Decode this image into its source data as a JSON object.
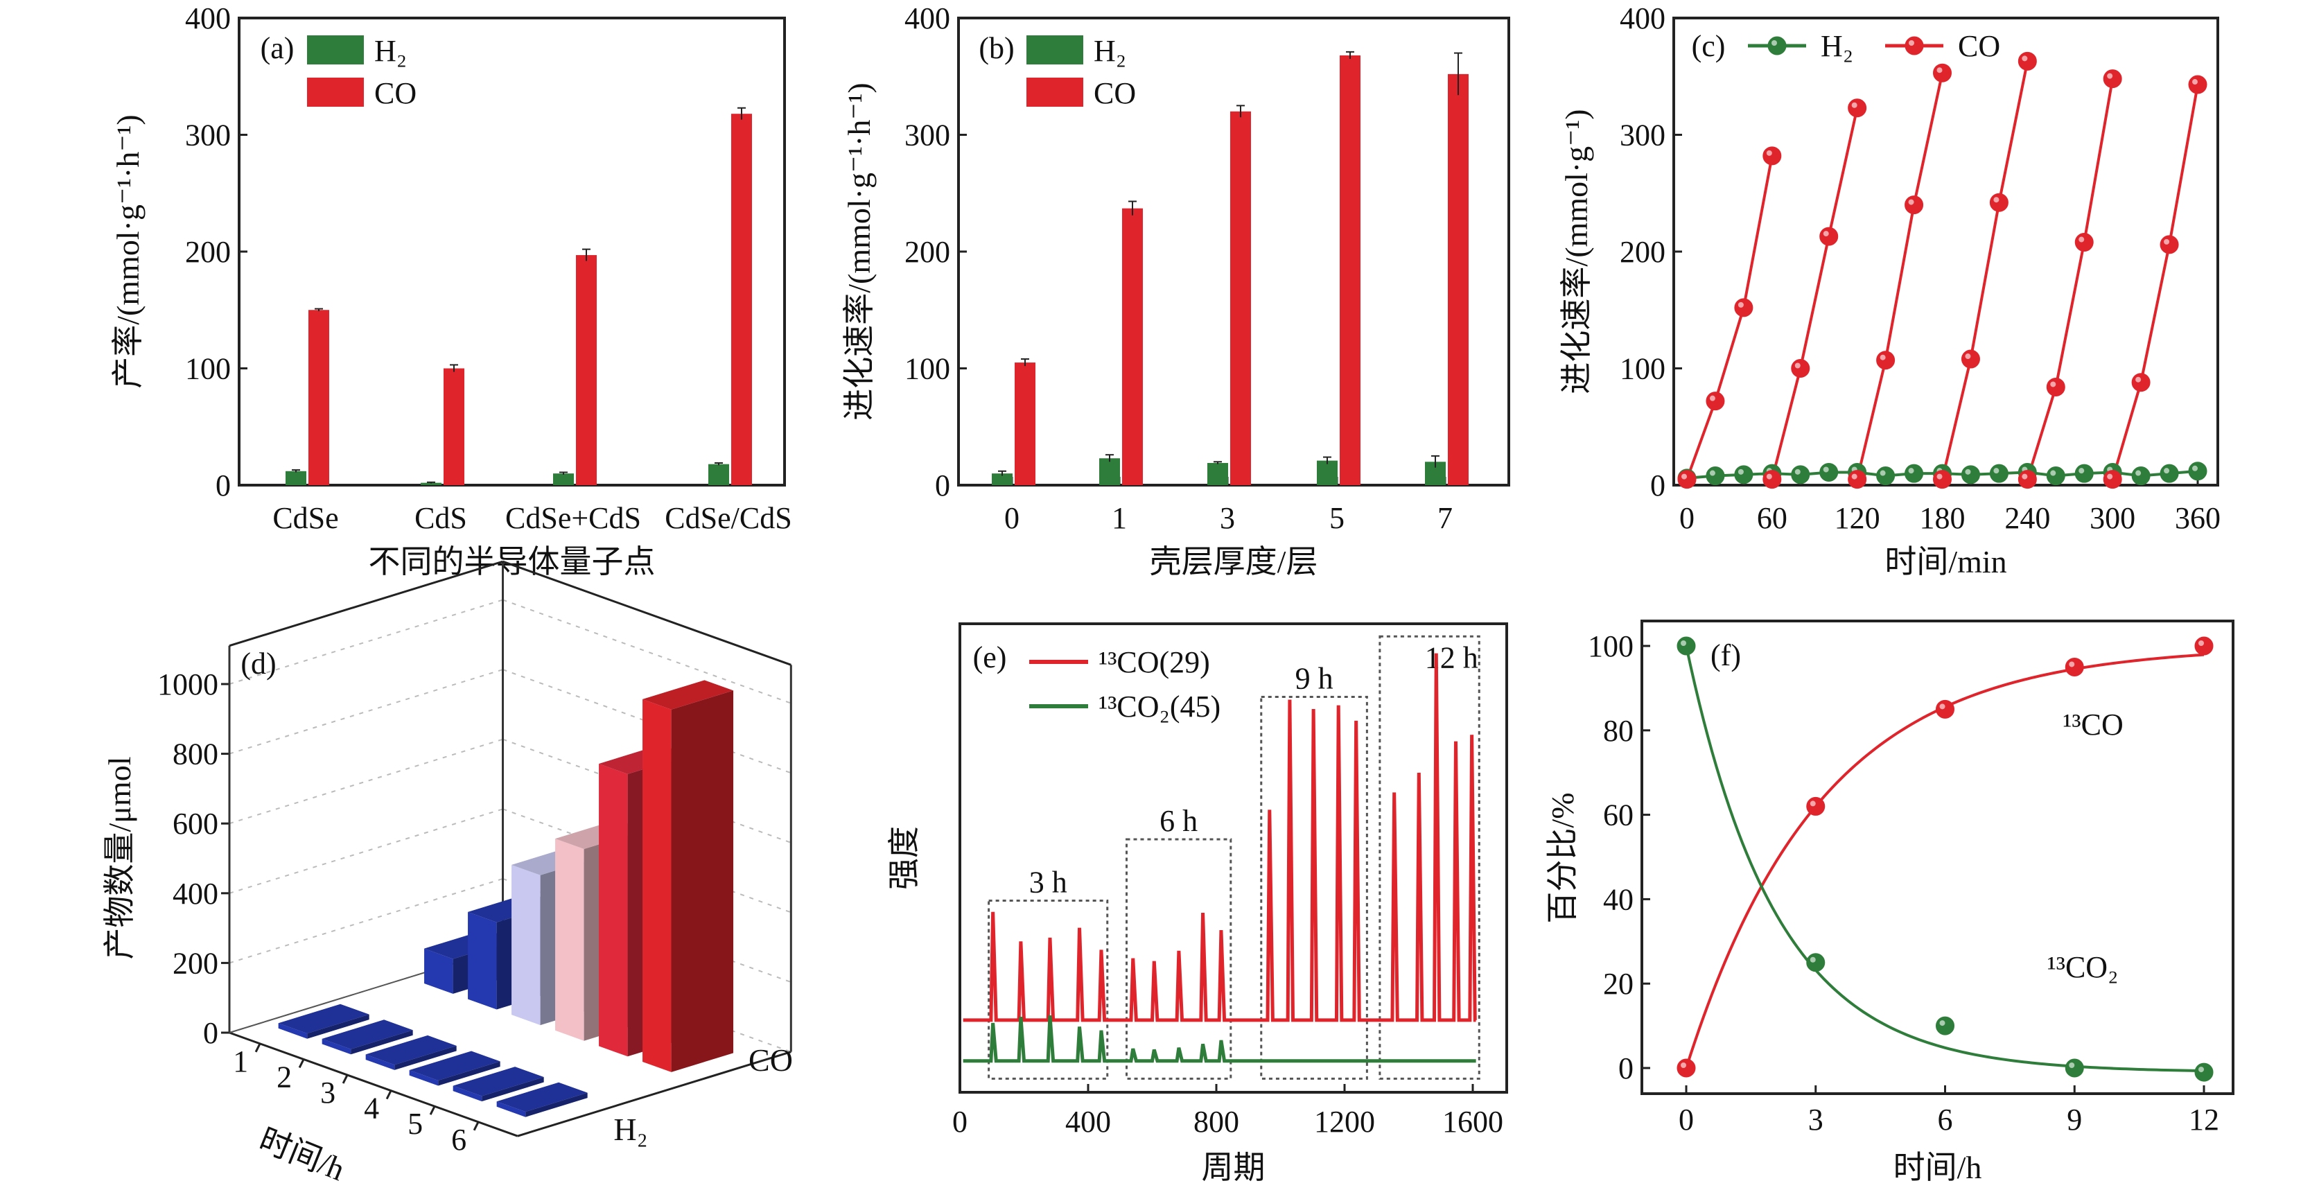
{
  "colors": {
    "h2": "#2f7d3a",
    "co": "#e0242c",
    "blue": "#2438b0",
    "grid": "#bbbbbb"
  },
  "chart_data": [
    {
      "panel": "(a)",
      "type": "bar",
      "categories": [
        "CdSe",
        "CdS",
        "CdSe+CdS",
        "CdSe/CdS"
      ],
      "xlabel": "不同的半导体量子点",
      "ylabel": "产率/(mmol·g⁻¹·h⁻¹)",
      "ylim": [
        0,
        400
      ],
      "yticks": [
        0,
        100,
        200,
        300,
        400
      ],
      "series": [
        {
          "name": "H₂",
          "values": [
            12,
            2,
            10,
            18
          ],
          "errors": [
            1,
            0.5,
            1,
            1
          ]
        },
        {
          "name": "CO",
          "values": [
            150,
            100,
            197,
            318
          ],
          "errors": [
            1,
            3,
            5,
            5
          ]
        }
      ],
      "legend": "top-left"
    },
    {
      "panel": "(b)",
      "type": "bar",
      "categories": [
        "0",
        "1",
        "3",
        "5",
        "7"
      ],
      "xlabel": "壳层厚度/层",
      "ylabel": "进化速率/(mmol·g⁻¹·h⁻¹)",
      "ylim": [
        0,
        400
      ],
      "yticks": [
        0,
        100,
        200,
        300,
        400
      ],
      "series": [
        {
          "name": "H₂",
          "values": [
            10,
            23,
            19,
            21,
            20
          ],
          "errors": [
            2,
            3,
            1,
            3,
            5
          ]
        },
        {
          "name": "CO",
          "values": [
            105,
            237,
            320,
            368,
            352
          ],
          "errors": [
            3,
            6,
            5,
            3,
            18
          ]
        }
      ],
      "legend": "top-left"
    },
    {
      "panel": "(c)",
      "type": "line",
      "xlabel": "时间/min",
      "ylabel": "进化速率/(mmol·g⁻¹)",
      "xlim": [
        0,
        360
      ],
      "xticks": [
        0,
        60,
        120,
        180,
        240,
        300,
        360
      ],
      "ylim": [
        0,
        400
      ],
      "yticks": [
        0,
        100,
        200,
        300,
        400
      ],
      "series": [
        {
          "name": "H₂",
          "x": [
            0,
            20,
            40,
            60,
            80,
            100,
            120,
            140,
            160,
            180,
            200,
            220,
            240,
            260,
            280,
            300,
            320,
            340,
            360
          ],
          "y": [
            6,
            8,
            9,
            10,
            9,
            11,
            11,
            8,
            10,
            10,
            9,
            10,
            11,
            8,
            10,
            11,
            8,
            10,
            12
          ]
        },
        {
          "name": "CO",
          "segments": [
            {
              "x": [
                0,
                20,
                40,
                60
              ],
              "y": [
                5,
                72,
                152,
                282
              ]
            },
            {
              "x": [
                60,
                80,
                100,
                120
              ],
              "y": [
                5,
                100,
                213,
                323
              ]
            },
            {
              "x": [
                120,
                140,
                160,
                180
              ],
              "y": [
                5,
                107,
                240,
                353
              ]
            },
            {
              "x": [
                180,
                200,
                220,
                240
              ],
              "y": [
                5,
                108,
                242,
                363
              ]
            },
            {
              "x": [
                240,
                260,
                280,
                300
              ],
              "y": [
                5,
                84,
                208,
                348
              ]
            },
            {
              "x": [
                300,
                320,
                340,
                360
              ],
              "y": [
                5,
                88,
                206,
                343
              ]
            }
          ]
        }
      ],
      "legend": "top"
    },
    {
      "panel": "(d)",
      "type": "bar3d",
      "xlabel": "时间/h",
      "ylabel": "产物数量/μmol",
      "categories": [
        "1",
        "2",
        "3",
        "4",
        "5",
        "6"
      ],
      "zcategories": [
        "H₂",
        "CO"
      ],
      "zlim": [
        0,
        1100
      ],
      "zticks": [
        0,
        200,
        400,
        600,
        800,
        1000
      ],
      "series": [
        {
          "name": "H₂",
          "values": [
            5,
            5,
            5,
            5,
            5,
            5
          ]
        },
        {
          "name": "CO",
          "values": [
            100,
            250,
            430,
            550,
            810,
            1040
          ]
        }
      ],
      "co_bar_colors": [
        "#2438b0",
        "#2438b0",
        "#c8c8f0",
        "#f4c0c8",
        "#e02a3c",
        "#e0242c"
      ]
    },
    {
      "panel": "(e)",
      "type": "line",
      "xlabel": "周期",
      "ylabel": "强度",
      "xlim": [
        0,
        1650
      ],
      "xticks": [
        0,
        400,
        800,
        1200,
        1600
      ],
      "ylim": [
        0,
        100
      ],
      "baselines": {
        "13CO": 15.4,
        "13CO2": 6.7
      },
      "series": [
        {
          "name": "¹³CO(29)",
          "peaks_x": [
            103,
            190,
            281,
            373,
            441,
            540,
            606,
            683,
            758,
            815,
            966,
            1029,
            1103,
            1181,
            1236,
            1355,
            1432,
            1486,
            1547,
            1597
          ],
          "peaks_y": [
            38.5,
            32.2,
            33,
            35.1,
            30.4,
            28.6,
            28,
            30.2,
            38.3,
            34.6,
            60.3,
            83.8,
            81.8,
            82.6,
            79.3,
            64,
            68.2,
            93.7,
            74.9,
            76.3
          ]
        },
        {
          "name": "¹³CO₂(45)",
          "peaks_x": [
            103,
            190,
            281,
            373,
            441,
            540,
            606,
            683,
            758,
            815
          ],
          "peaks_y": [
            14.8,
            16.1,
            16.4,
            14,
            13.2,
            9.3,
            9.1,
            9.5,
            10.3,
            11.1
          ]
        }
      ],
      "groups": [
        {
          "label": "3 h",
          "x": [
            90,
            460
          ],
          "top": 40.9
        },
        {
          "label": "6 h",
          "x": [
            520,
            845
          ],
          "top": 54
        },
        {
          "label": "9 h",
          "x": [
            940,
            1270
          ],
          "top": 84.4
        },
        {
          "label": "12 h",
          "x": [
            1310,
            1620
          ],
          "top": 97.3
        }
      ],
      "legend": "top-left"
    },
    {
      "panel": "(f)",
      "type": "line",
      "xlabel": "时间/h",
      "ylabel": "百分比/%",
      "xlim": [
        0,
        12
      ],
      "xticks": [
        0,
        3,
        6,
        9,
        12
      ],
      "ylim": [
        -3,
        103
      ],
      "yticks": [
        0,
        20,
        40,
        60,
        80,
        100
      ],
      "series": [
        {
          "name": "¹³CO",
          "x": [
            0,
            3,
            6,
            9,
            12
          ],
          "y": [
            0,
            62,
            85,
            95,
            100
          ]
        },
        {
          "name": "¹³CO₂",
          "x": [
            0,
            3,
            6,
            9,
            12
          ],
          "y": [
            100,
            25,
            10,
            0,
            -1
          ]
        }
      ]
    }
  ]
}
